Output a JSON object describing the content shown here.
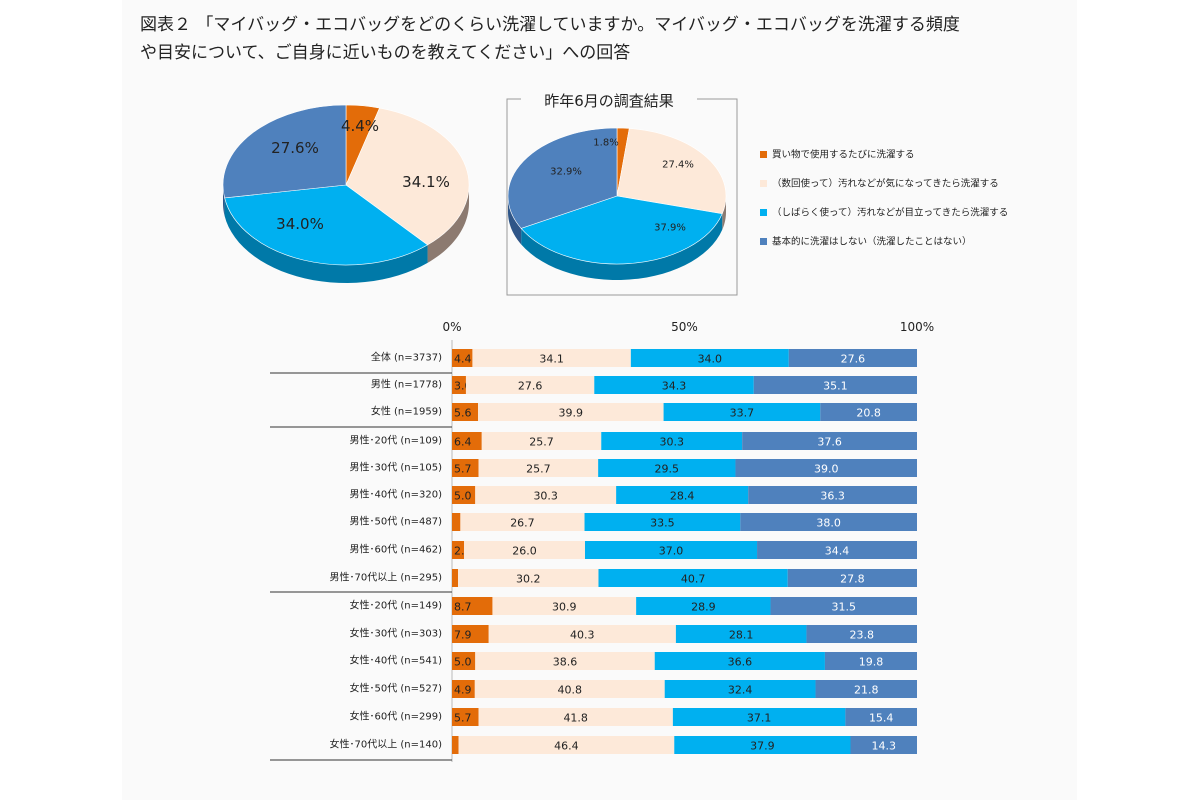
{
  "title_line1": "図表２ 「マイバッグ・エコバッグをどのくらい洗濯していますか。マイバッグ・エコバッグを洗濯する頻度",
  "title_line2": "や目安について、ご自身に近いものを教えてください」への回答",
  "inset_label": "昨年6月の調査結果",
  "colors": {
    "c1": "#e36c09",
    "c2": "#fde9d9",
    "c3": "#00b0f0",
    "c4": "#4f81bd"
  },
  "chart_data": [
    {
      "type": "pie",
      "name": "current",
      "labels": [
        "4.4%",
        "34.1%",
        "34.0%",
        "27.6%"
      ],
      "values": [
        4.4,
        34.1,
        34.0,
        27.6
      ]
    },
    {
      "type": "pie",
      "name": "last-year",
      "labels": [
        "1.8%",
        "27.4%",
        "37.9%",
        "32.9%"
      ],
      "values": [
        1.8,
        27.4,
        37.9,
        32.9
      ]
    },
    {
      "type": "bar",
      "orientation": "horizontal",
      "stacked": true,
      "axis_ticks": [
        "0%",
        "50%",
        "100%"
      ],
      "legend": [
        "買い物で使用するたびに洗濯する",
        "（数回使って）汚れなどが気になってきたら洗濯する",
        "（しばらく使って）汚れなどが目立ってきたら洗濯する",
        "基本的に洗濯はしない（洗濯したことはない）"
      ],
      "rows": [
        {
          "label": "全体 (n=3737)",
          "values": [
            4.4,
            34.1,
            34.0,
            27.6
          ],
          "labels": [
            "4.4",
            "34.1",
            "34.0",
            "27.6"
          ]
        },
        {
          "label": "男性 (n=1778)",
          "values": [
            3.0,
            27.6,
            34.3,
            35.1
          ],
          "labels": [
            "3.0",
            "27.6",
            "34.3",
            "35.1"
          ]
        },
        {
          "label": "女性 (n=1959)",
          "values": [
            5.6,
            39.9,
            33.7,
            20.8
          ],
          "labels": [
            "5.6",
            "39.9",
            "33.7",
            "20.8"
          ]
        },
        {
          "label": "男性･20代 (n=109)",
          "values": [
            6.4,
            25.7,
            30.3,
            37.6
          ],
          "labels": [
            "6.4",
            "25.7",
            "30.3",
            "37.6"
          ]
        },
        {
          "label": "男性･30代 (n=105)",
          "values": [
            5.7,
            25.7,
            29.5,
            39.0
          ],
          "labels": [
            "5.7",
            "25.7",
            "29.5",
            "39.0"
          ]
        },
        {
          "label": "男性･40代 (n=320)",
          "values": [
            5.0,
            30.3,
            28.4,
            36.3
          ],
          "labels": [
            "5.0",
            "30.3",
            "28.4",
            "36.3"
          ]
        },
        {
          "label": "男性･50代 (n=487)",
          "values": [
            1.8,
            26.7,
            33.5,
            38.0
          ],
          "labels": [
            "",
            "26.7",
            "33.5",
            "38.0"
          ]
        },
        {
          "label": "男性･60代 (n=462)",
          "values": [
            2.6,
            26.0,
            37.0,
            34.4
          ],
          "labels": [
            "2.6",
            "26.0",
            "37.0",
            "34.4"
          ]
        },
        {
          "label": "男性･70代以上 (n=295)",
          "values": [
            1.3,
            30.2,
            40.7,
            27.8
          ],
          "labels": [
            "",
            "30.2",
            "40.7",
            "27.8"
          ]
        },
        {
          "label": "女性･20代 (n=149)",
          "values": [
            8.7,
            30.9,
            28.9,
            31.5
          ],
          "labels": [
            "8.7",
            "30.9",
            "28.9",
            "31.5"
          ]
        },
        {
          "label": "女性･30代 (n=303)",
          "values": [
            7.9,
            40.3,
            28.1,
            23.8
          ],
          "labels": [
            "7.9",
            "40.3",
            "28.1",
            "23.8"
          ]
        },
        {
          "label": "女性･40代 (n=541)",
          "values": [
            5.0,
            38.6,
            36.6,
            19.8
          ],
          "labels": [
            "5.0",
            "38.6",
            "36.6",
            "19.8"
          ]
        },
        {
          "label": "女性･50代 (n=527)",
          "values": [
            4.9,
            40.8,
            32.4,
            21.8
          ],
          "labels": [
            "4.9",
            "40.8",
            "32.4",
            "21.8"
          ]
        },
        {
          "label": "女性･60代 (n=299)",
          "values": [
            5.7,
            41.8,
            37.1,
            15.4
          ],
          "labels": [
            "5.7",
            "41.8",
            "37.1",
            "15.4"
          ]
        },
        {
          "label": "女性･70代以上 (n=140)",
          "values": [
            1.4,
            46.4,
            37.9,
            14.3
          ],
          "labels": [
            "",
            "46.4",
            "37.9",
            "14.3"
          ]
        }
      ]
    }
  ]
}
